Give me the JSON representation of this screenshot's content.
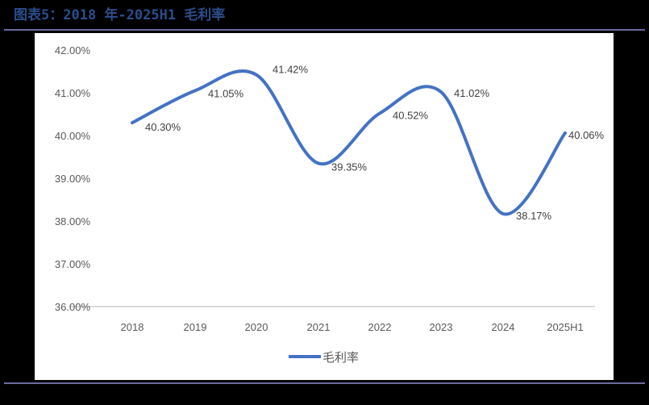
{
  "figure": {
    "title": "图表5：2018 年-2025H1 毛利率"
  },
  "chart_data": {
    "type": "line",
    "title": "2018 年-2025H1 毛利率",
    "categories": [
      "2018",
      "2019",
      "2020",
      "2021",
      "2022",
      "2023",
      "2024",
      "2025H1"
    ],
    "series": [
      {
        "name": "毛利率",
        "values": [
          40.3,
          41.05,
          41.42,
          39.35,
          40.52,
          41.02,
          38.17,
          40.06
        ],
        "color": "#4472c4"
      }
    ],
    "data_labels": [
      "40.30%",
      "41.05%",
      "41.42%",
      "39.35%",
      "40.52%",
      "41.02%",
      "38.17%",
      "40.06%"
    ],
    "yticks": [
      "36.00%",
      "37.00%",
      "38.00%",
      "39.00%",
      "40.00%",
      "41.00%",
      "42.00%"
    ],
    "ylim": [
      36,
      42
    ],
    "xlabel": "",
    "ylabel": "",
    "smooth": true,
    "legend": {
      "position": "bottom",
      "label": "毛利率"
    },
    "grid": {
      "horizontal": false
    }
  }
}
